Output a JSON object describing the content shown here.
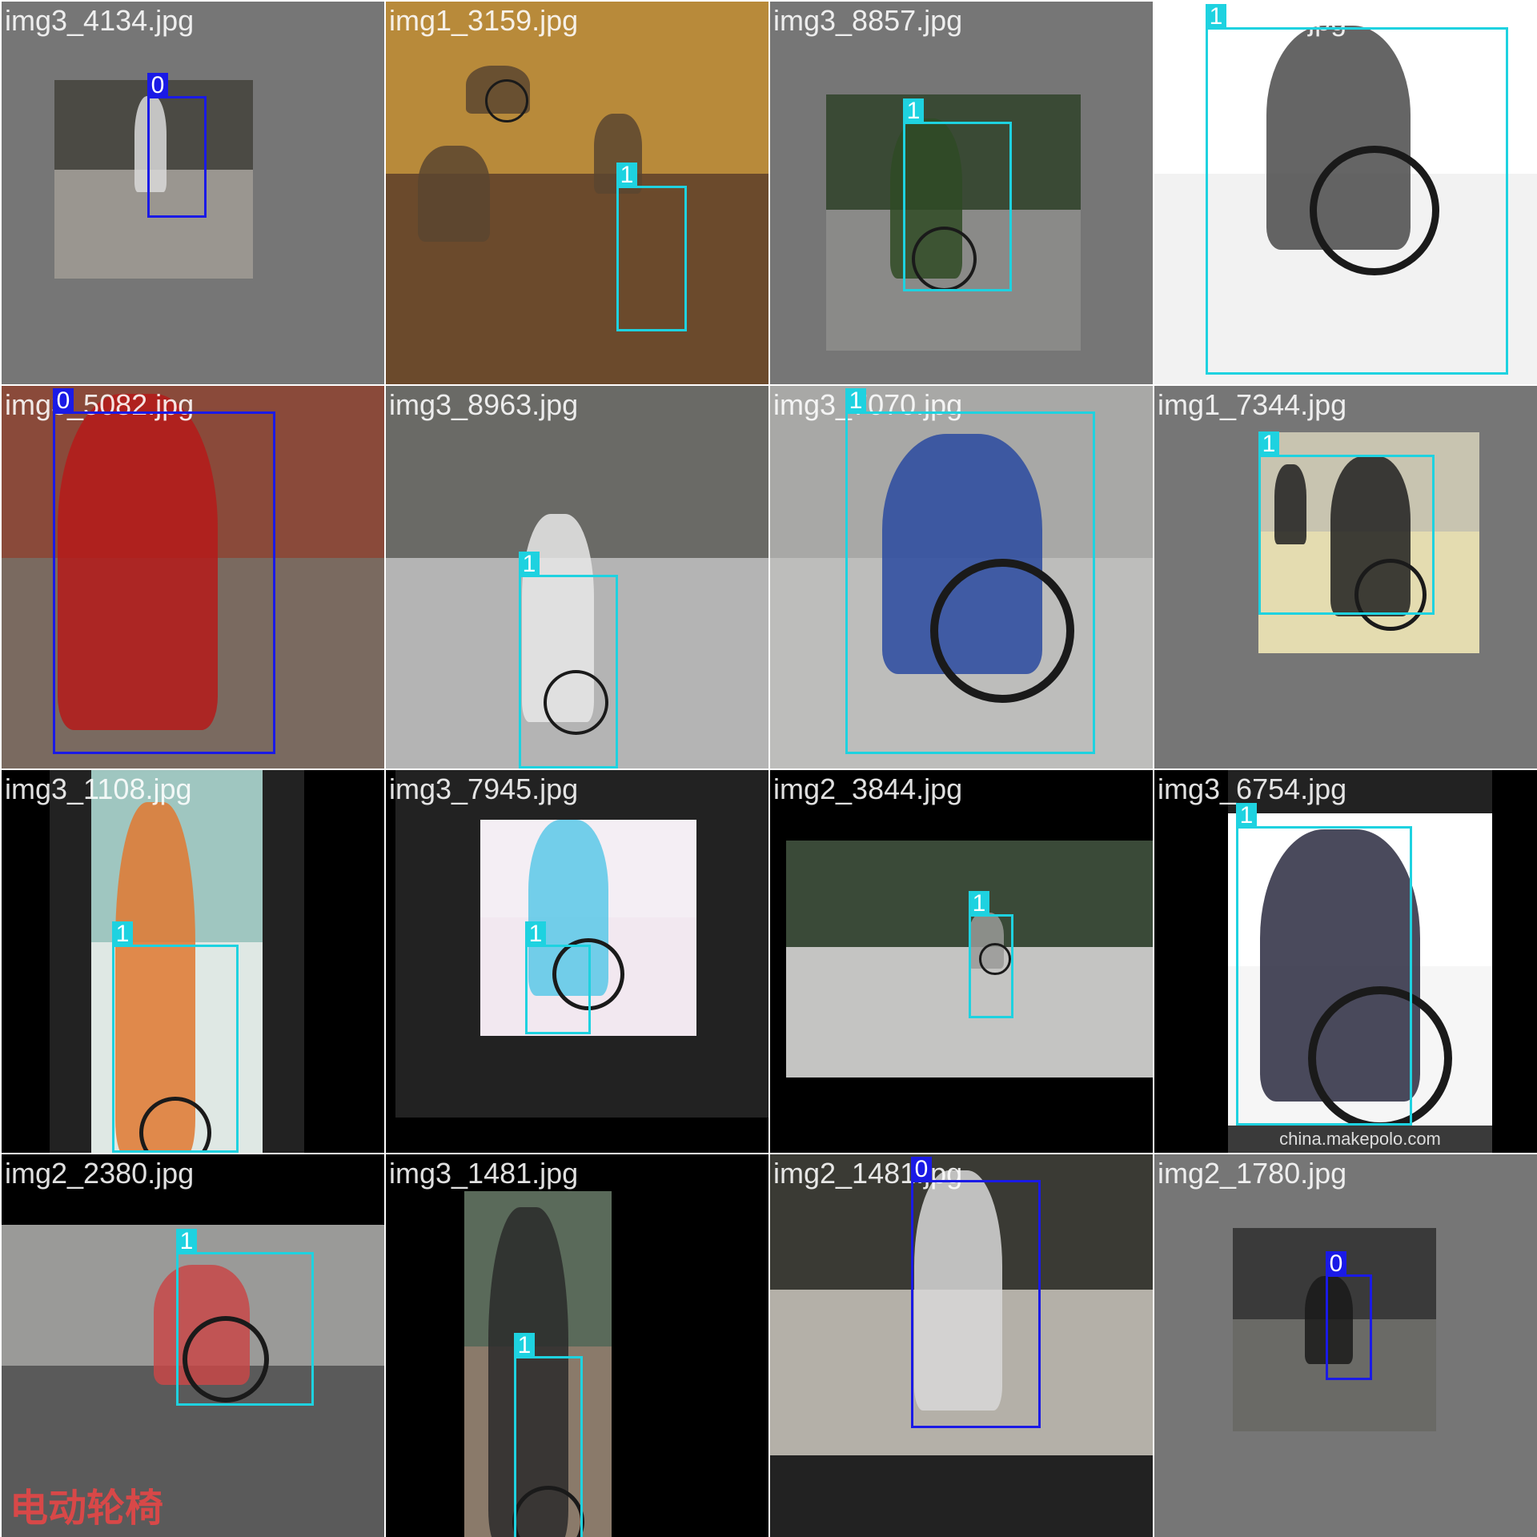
{
  "colors": {
    "class0": "#1a1ae6",
    "class1": "#1ed2e0",
    "gray_pad": "#767676",
    "black_pad": "#000000"
  },
  "tiles": [
    {
      "filename": "img3_4134.jpg",
      "pad": "gray",
      "scene": [
        "#4b4a44",
        "#9a9690",
        "#d9d9d9"
      ],
      "boxes": [
        {
          "label": "0",
          "cls": 0
        }
      ]
    },
    {
      "filename": "img1_3159.jpg",
      "pad": "none",
      "scene": [
        "#b88a3a",
        "#6b4a2c",
        "#5a4530"
      ],
      "boxes": [
        {
          "label": "1",
          "cls": 1
        }
      ]
    },
    {
      "filename": "img3_8857.jpg",
      "pad": "gray",
      "scene": [
        "#3a4a35",
        "#8a8a88",
        "#2f4a25"
      ],
      "boxes": [
        {
          "label": "1",
          "cls": 1
        }
      ]
    },
    {
      "filename": "img1_8590.jpg",
      "pad": "none",
      "scene": [
        "#ffffff",
        "#f2f2f2",
        "#4a4a4a"
      ],
      "boxes": [
        {
          "label": "1",
          "cls": 1
        }
      ]
    },
    {
      "filename": "img3_5082.jpg",
      "pad": "none",
      "scene": [
        "#8a4a3a",
        "#7a6a60",
        "#b51a1a"
      ],
      "boxes": [
        {
          "label": "0",
          "cls": 0
        }
      ]
    },
    {
      "filename": "img3_8963.jpg",
      "pad": "none",
      "scene": [
        "#6a6a66",
        "#b4b4b4",
        "#e8e8e8"
      ],
      "boxes": [
        {
          "label": "1",
          "cls": 1
        }
      ]
    },
    {
      "filename": "img3_7070.jpg",
      "pad": "none",
      "scene": [
        "#a8a8a6",
        "#bdbdbb",
        "#2a4aa0"
      ],
      "boxes": [
        {
          "label": "1",
          "cls": 1
        }
      ]
    },
    {
      "filename": "img1_7344.jpg",
      "pad": "gray",
      "scene": [
        "#c8c4b0",
        "#e4dcb0",
        "#202020"
      ],
      "boxes": [
        {
          "label": "1",
          "cls": 1
        }
      ]
    },
    {
      "filename": "img3_1108.jpg",
      "pad": "black",
      "scene": [
        "#9fc6c0",
        "#dfe8e4",
        "#e07830"
      ],
      "boxes": [
        {
          "label": "1",
          "cls": 1
        }
      ]
    },
    {
      "filename": "img3_7945.jpg",
      "pad": "black",
      "scene": [
        "#f4eef4",
        "#f2e8f0",
        "#5ac8e8"
      ],
      "boxes": [
        {
          "label": "1",
          "cls": 1
        }
      ]
    },
    {
      "filename": "img2_3844.jpg",
      "pad": "black",
      "scene": [
        "#3a4a38",
        "#c4c4c2",
        "#9a9a98"
      ],
      "boxes": [
        {
          "label": "1",
          "cls": 1
        }
      ]
    },
    {
      "filename": "img3_6754.jpg",
      "pad": "black",
      "scene": [
        "#ffffff",
        "#f6f6f6",
        "#2a2a40"
      ],
      "boxes": [
        {
          "label": "1",
          "cls": 1
        }
      ],
      "caption": "china.makepolo.com"
    },
    {
      "filename": "img2_2380.jpg",
      "pad": "black",
      "scene": [
        "#9a9a98",
        "#5a5a5a",
        "#c84848"
      ],
      "boxes": [
        {
          "label": "1",
          "cls": 1
        }
      ],
      "caption": "电动轮椅"
    },
    {
      "filename": "img3_1481.jpg",
      "pad": "black",
      "scene": [
        "#5a6a5a",
        "#8a7a6a",
        "#2a2a2a"
      ],
      "boxes": [
        {
          "label": "1",
          "cls": 1
        }
      ]
    },
    {
      "filename": "img2_1481.jpg",
      "pad": "black",
      "scene": [
        "#3a3a34",
        "#b4b0a8",
        "#d8d8d8"
      ],
      "boxes": [
        {
          "label": "0",
          "cls": 0
        }
      ]
    },
    {
      "filename": "img2_1780.jpg",
      "pad": "gray",
      "scene": [
        "#3a3a3a",
        "#6a6a66",
        "#1a1a1a"
      ],
      "boxes": [
        {
          "label": "0",
          "cls": 0
        }
      ]
    }
  ]
}
